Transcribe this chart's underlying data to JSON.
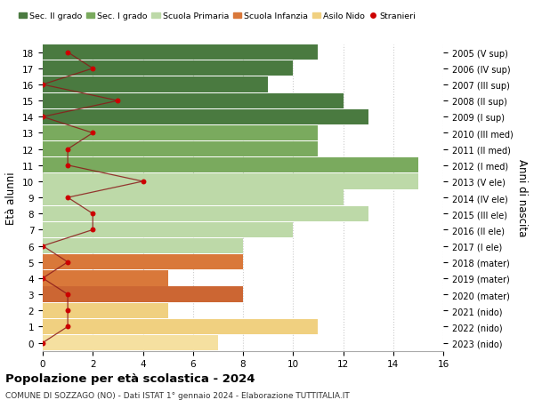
{
  "ages": [
    18,
    17,
    16,
    15,
    14,
    13,
    12,
    11,
    10,
    9,
    8,
    7,
    6,
    5,
    4,
    3,
    2,
    1,
    0
  ],
  "years": [
    "2005 (V sup)",
    "2006 (IV sup)",
    "2007 (III sup)",
    "2008 (II sup)",
    "2009 (I sup)",
    "2010 (III med)",
    "2011 (II med)",
    "2012 (I med)",
    "2013 (V ele)",
    "2014 (IV ele)",
    "2015 (III ele)",
    "2016 (II ele)",
    "2017 (I ele)",
    "2018 (mater)",
    "2019 (mater)",
    "2020 (mater)",
    "2021 (nido)",
    "2022 (nido)",
    "2023 (nido)"
  ],
  "bar_values": [
    11,
    10,
    9,
    12,
    13,
    11,
    11,
    15,
    15,
    12,
    13,
    10,
    8,
    8,
    5,
    8,
    5,
    11,
    7
  ],
  "bar_colors": [
    "#4a7a40",
    "#4a7a40",
    "#4a7a40",
    "#4a7a40",
    "#4a7a40",
    "#7aaa5e",
    "#7aaa5e",
    "#7aaa5e",
    "#bdd9a8",
    "#bdd9a8",
    "#bdd9a8",
    "#bdd9a8",
    "#bdd9a8",
    "#d9783a",
    "#d9783a",
    "#cc6633",
    "#f0d080",
    "#f0d080",
    "#f5e0a0"
  ],
  "stranieri_x": [
    1,
    2,
    0,
    3,
    0,
    2,
    1,
    1,
    4,
    1,
    2,
    2,
    0,
    1,
    0,
    1,
    1,
    1,
    0
  ],
  "legend_labels": [
    "Sec. II grado",
    "Sec. I grado",
    "Scuola Primaria",
    "Scuola Infanzia",
    "Asilo Nido",
    "Stranieri"
  ],
  "legend_colors": [
    "#4a7a40",
    "#7aaa5e",
    "#bdd9a8",
    "#d9783a",
    "#f0d080",
    "#cc0000"
  ],
  "ylabel_text": "Età alunni",
  "right_label": "Anni di nascita",
  "title": "Popolazione per età scolastica - 2024",
  "subtitle": "COMUNE DI SOZZAGO (NO) - Dati ISTAT 1° gennaio 2024 - Elaborazione TUTTITALIA.IT",
  "xlim": [
    0,
    16
  ],
  "ylim": [
    -0.5,
    18.5
  ],
  "background_color": "#ffffff",
  "grid_color": "#cccccc"
}
